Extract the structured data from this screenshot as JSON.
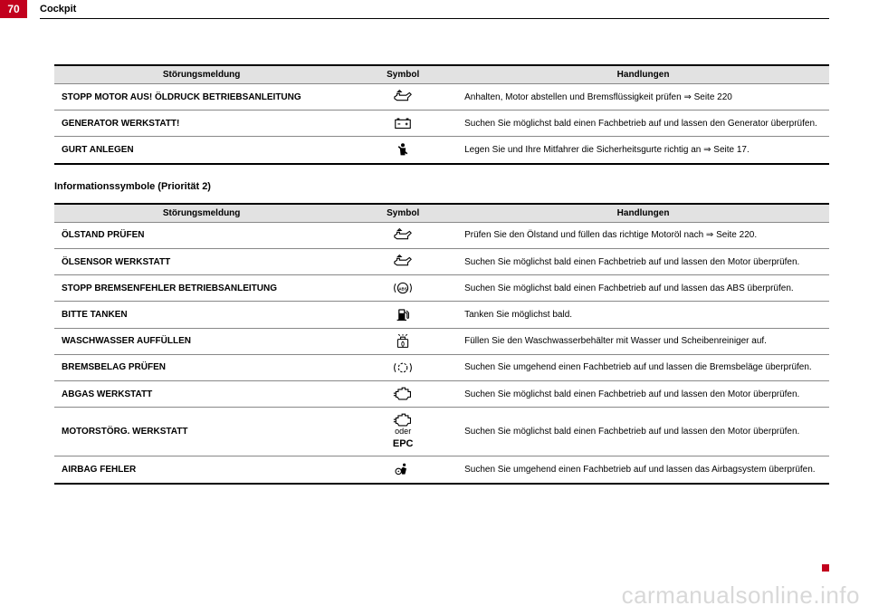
{
  "page": {
    "number": "70",
    "section": "Cockpit"
  },
  "watermark": "carmanualsonline.info",
  "table1": {
    "headers": {
      "msg": "Störungsmeldung",
      "sym": "Symbol",
      "act": "Handlungen"
    },
    "rows": [
      {
        "msg": "STOPP MOTOR AUS! ÖLDRUCK BETRIEBSANLEITUNG",
        "icon": "oil-can",
        "act": "Anhalten, Motor abstellen und Bremsflüssigkeit prüfen ⇒ Seite 220"
      },
      {
        "msg": "GENERATOR WERKSTATT!",
        "icon": "battery",
        "act": "Suchen Sie möglichst bald einen Fachbetrieb auf und lassen den Generator überprüfen."
      },
      {
        "msg": "GURT ANLEGEN",
        "icon": "seatbelt",
        "act": "Legen Sie und Ihre Mitfahrer die Sicherheitsgurte richtig an ⇒ Seite 17."
      }
    ]
  },
  "subheading": "Informationssymbole (Priorität 2)",
  "table2": {
    "headers": {
      "msg": "Störungsmeldung",
      "sym": "Symbol",
      "act": "Handlungen"
    },
    "rows": [
      {
        "msg": "ÖLSTAND PRÜFEN",
        "icon": "oil-can",
        "act": "Prüfen Sie den Ölstand und füllen das richtige Motoröl nach ⇒ Seite 220."
      },
      {
        "msg": "ÖLSENSOR WERKSTATT",
        "icon": "oil-can",
        "act": "Suchen Sie möglichst bald einen Fachbetrieb auf und lassen den Motor überprüfen."
      },
      {
        "msg": "STOPP BREMSENFEHLER BETRIEBSANLEITUNG",
        "icon": "abs",
        "act": "Suchen Sie möglichst bald einen Fachbetrieb auf und lassen das ABS überprüfen."
      },
      {
        "msg": "BITTE TANKEN",
        "icon": "fuel",
        "act": "Tanken Sie möglichst bald."
      },
      {
        "msg": "WASCHWASSER AUFFÜLLEN",
        "icon": "washer",
        "act": "Füllen Sie den Waschwasserbehälter mit Wasser und Scheibenreiniger auf."
      },
      {
        "msg": "BREMSBELAG PRÜFEN",
        "icon": "brake-pad",
        "act": "Suchen Sie umgehend einen Fachbetrieb auf und lassen die Bremsbeläge überprüfen."
      },
      {
        "msg": "ABGAS WERKSTATT",
        "icon": "engine",
        "act": "Suchen Sie möglichst bald einen Fachbetrieb auf und lassen den Motor überprüfen."
      },
      {
        "msg": "MOTORSTÖRG. WERKSTATT",
        "icon": "engine-epc",
        "sub": "oder",
        "epc": "EPC",
        "act": "Suchen Sie möglichst bald einen Fachbetrieb auf und lassen den Motor überprüfen."
      },
      {
        "msg": "AIRBAG FEHLER",
        "icon": "airbag",
        "act": "Suchen Sie umgehend einen Fachbetrieb auf und lassen das Airbagsystem überprüfen."
      }
    ]
  },
  "icons": {
    "oil-can": "<svg viewBox='0 0 24 16'><path d='M2 8 L5 6 L5 4 L8 4 L8 6 L16 6 L20 3 L22 5 L18 9 L18 12 L5 12 L2 10 Z M6 2 L10 2 L8 0 Z' fill='none' stroke='#000' stroke-width='1.2'/></svg>",
    "battery": "<svg viewBox='0 0 24 16'><rect x='3' y='4' width='18' height='10' fill='none' stroke='#000' stroke-width='1.2'/><rect x='5' y='2' width='3' height='2' fill='#000'/><rect x='16' y='2' width='3' height='2' fill='#000'/><line x1='6' y1='9' x2='9' y2='9' stroke='#000' stroke-width='1.2'/><line x1='15' y1='9' x2='18' y2='9' stroke='#000' stroke-width='1.2'/><line x1='16.5' y1='7.5' x2='16.5' y2='10.5' stroke='#000' stroke-width='1.2'/></svg>",
    "seatbelt": "<svg viewBox='0 0 20 20'><circle cx='10' cy='4' r='2.5' fill='#000'/><path d='M6 8 L14 8 L13 18 L7 18 Z' fill='#000'/><path d='M4 6 L16 16' stroke='#000' stroke-width='2'/></svg>",
    "abs": "<svg viewBox='0 0 24 20'><circle cx='12' cy='10' r='7' fill='none' stroke='#000' stroke-width='1.3'/><text x='12' y='13' font-size='5.5' text-anchor='middle' font-weight='bold' font-family='Arial'>ABS</text><path d='M2 4 A12 12 0 0 0 2 16' fill='none' stroke='#000' stroke-width='1.3'/><path d='M22 4 A12 12 0 0 1 22 16' fill='none' stroke='#000' stroke-width='1.3'/></svg>",
    "fuel": "<svg viewBox='0 0 20 20'><rect x='4' y='3' width='9' height='15' rx='1' fill='#000'/><rect x='5.5' y='4.5' width='6' height='4' fill='#fff'/><path d='M13 7 L16 9 L16 15 A1.5 1.5 0 0 0 18 15 L18 8 L15 5' fill='none' stroke='#000' stroke-width='1.3'/><line x1='2' y1='18' x2='15' y2='18' stroke='#000' stroke-width='1.5'/></svg>",
    "washer": "<svg viewBox='0 0 22 20'><rect x='4' y='7' width='14' height='11' rx='1' fill='none' stroke='#000' stroke-width='1.3'/><path d='M8 7 L8 4 L14 4 L14 7' fill='none' stroke='#000' stroke-width='1.3'/><path d='M7 2 L5 0 M11 2 L11 0 M15 2 L17 0' stroke='#000' stroke-width='1.2'/><path d='M11 10 A3 4 0 0 1 11 17 A3 4 0 0 1 11 10' fill='none' stroke='#000' stroke-width='1'/></svg>",
    "brake-pad": "<svg viewBox='0 0 24 20'><circle cx='12' cy='10' r='6' fill='none' stroke='#000' stroke-width='1.3' stroke-dasharray='3 2'/><path d='M2 4 A12 12 0 0 0 2 16' fill='none' stroke='#000' stroke-width='1.3'/><path d='M22 4 A12 12 0 0 1 22 16' fill='none' stroke='#000' stroke-width='1.3'/></svg>",
    "engine": "<svg viewBox='0 0 26 18'><path d='M4 6 L7 6 L7 3 L12 3 L12 1 L16 1 L16 3 L20 3 L20 6 L23 6 L23 13 L20 13 L18 16 L8 16 L6 13 L4 13 Z' fill='none' stroke='#000' stroke-width='1.3'/><line x1='1' y1='8' x2='4' y2='8' stroke='#000' stroke-width='1.3'/><line x1='1' y1='11' x2='4' y2='11' stroke='#000' stroke-width='1.3'/></svg>",
    "airbag": "<svg viewBox='0 0 22 20'><circle cx='13' cy='4' r='2' fill='#000'/><path d='M11 7 L16 9 L14 17 L10 17 L8 11 Z' fill='#000'/><circle cx='5' cy='13' r='4' fill='none' stroke='#000' stroke-width='1.3'/><circle cx='5' cy='13' r='1' fill='#000'/></svg>"
  }
}
